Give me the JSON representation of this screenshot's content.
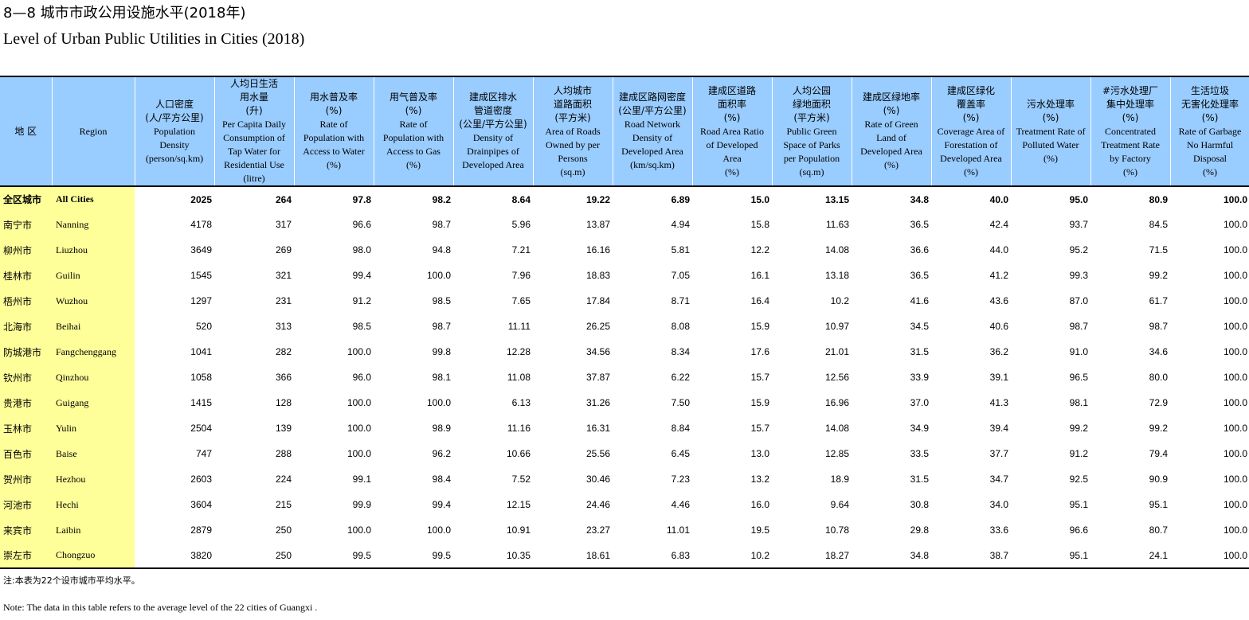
{
  "title": {
    "cn": "8—8  城市市政公用设施水平(2018年)",
    "en": "Level of Urban Public Utilities in Cities (2018)"
  },
  "table": {
    "region_cn_header": "地 区",
    "region_en_header": "Region",
    "columns": [
      {
        "cn": [
          "人口密度",
          "(人/平方公里)"
        ],
        "en": [
          "Population",
          "Density",
          "(person/sq.km)"
        ]
      },
      {
        "cn": [
          "人均日生活",
          "用水量",
          "(升)"
        ],
        "en": [
          "Per Capita Daily",
          "Consumption of",
          "Tap Water for",
          "Residential Use",
          "(litre)"
        ]
      },
      {
        "cn": [
          "用水普及率",
          "(%)"
        ],
        "en": [
          "Rate of",
          "Population with",
          "Access to Water",
          "(%)"
        ]
      },
      {
        "cn": [
          "用气普及率",
          "(%)"
        ],
        "en": [
          "Rate of",
          "Population with",
          "Access to Gas",
          "(%)"
        ]
      },
      {
        "cn": [
          "建成区排水",
          "管道密度",
          "(公里/平方公里)"
        ],
        "en": [
          "Density of",
          "Drainpipes of",
          "Developed Area"
        ]
      },
      {
        "cn": [
          "人均城市",
          "道路面积",
          "(平方米)"
        ],
        "en": [
          "Area of Roads",
          "Owned by per",
          "Persons",
          "(sq.m)"
        ]
      },
      {
        "cn": [
          "建成区路网密度",
          "(公里/平方公里)"
        ],
        "en": [
          "Road Network",
          "Density of",
          "Developed Area",
          "(km/sq.km)"
        ]
      },
      {
        "cn": [
          "建成区道路",
          "面积率",
          "(%)"
        ],
        "en": [
          "Road Area Ratio",
          "of Developed",
          "Area",
          "(%)"
        ]
      },
      {
        "cn": [
          "人均公园",
          "绿地面积",
          "(平方米)"
        ],
        "en": [
          "Public Green",
          "Space of Parks",
          "per Population",
          "(sq.m)"
        ]
      },
      {
        "cn": [
          "建成区绿地率",
          "(%)"
        ],
        "en": [
          "Rate of Green",
          "Land of",
          "Developed Area",
          "(%)"
        ]
      },
      {
        "cn": [
          "建成区绿化",
          "覆盖率",
          "(%)"
        ],
        "en": [
          "Coverage Area of",
          "Forestation of",
          "Developed Area",
          "(%)"
        ]
      },
      {
        "cn": [
          "污水处理率",
          "(%)"
        ],
        "en": [
          "Treatment Rate of",
          "Polluted Water",
          "(%)"
        ]
      },
      {
        "cn": [
          "#污水处理厂",
          "集中处理率",
          "(%)"
        ],
        "en": [
          "Concentrated",
          "Treatment Rate",
          "by Factory",
          "(%)"
        ]
      },
      {
        "cn": [
          "生活垃圾",
          "无害化处理率",
          "(%)"
        ],
        "en": [
          "Rate of Garbage",
          "No Harmful",
          "Disposal",
          "(%)"
        ]
      }
    ],
    "rows": [
      {
        "cn": "全区城市",
        "en": "All Cities",
        "total": true,
        "values": [
          "2025",
          "264",
          "97.8",
          "98.2",
          "8.64",
          "19.22",
          "6.89",
          "15.0",
          "13.15",
          "34.8",
          "40.0",
          "95.0",
          "80.9",
          "100.0"
        ]
      },
      {
        "cn": "南宁市",
        "en": "Nanning",
        "values": [
          "4178",
          "317",
          "96.6",
          "98.7",
          "5.96",
          "13.87",
          "4.94",
          "15.8",
          "11.63",
          "36.5",
          "42.4",
          "93.7",
          "84.5",
          "100.0"
        ]
      },
      {
        "cn": "柳州市",
        "en": "Liuzhou",
        "values": [
          "3649",
          "269",
          "98.0",
          "94.8",
          "7.21",
          "16.16",
          "5.81",
          "12.2",
          "14.08",
          "36.6",
          "44.0",
          "95.2",
          "71.5",
          "100.0"
        ]
      },
      {
        "cn": "桂林市",
        "en": "Guilin",
        "values": [
          "1545",
          "321",
          "99.4",
          "100.0",
          "7.96",
          "18.83",
          "7.05",
          "16.1",
          "13.18",
          "36.5",
          "41.2",
          "99.3",
          "99.2",
          "100.0"
        ]
      },
      {
        "cn": "梧州市",
        "en": "Wuzhou",
        "values": [
          "1297",
          "231",
          "91.2",
          "98.5",
          "7.65",
          "17.84",
          "8.71",
          "16.4",
          "10.2",
          "41.6",
          "43.6",
          "87.0",
          "61.7",
          "100.0"
        ]
      },
      {
        "cn": "北海市",
        "en": "Beihai",
        "values": [
          "520",
          "313",
          "98.5",
          "98.7",
          "11.11",
          "26.25",
          "8.08",
          "15.9",
          "10.97",
          "34.5",
          "40.6",
          "98.7",
          "98.7",
          "100.0"
        ]
      },
      {
        "cn": "防城港市",
        "en": "Fangchenggang",
        "values": [
          "1041",
          "282",
          "100.0",
          "99.8",
          "12.28",
          "34.56",
          "8.34",
          "17.6",
          "21.01",
          "31.5",
          "36.2",
          "91.0",
          "34.6",
          "100.0"
        ]
      },
      {
        "cn": "钦州市",
        "en": "Qinzhou",
        "values": [
          "1058",
          "366",
          "96.0",
          "98.1",
          "11.08",
          "37.87",
          "6.22",
          "15.7",
          "12.56",
          "33.9",
          "39.1",
          "96.5",
          "80.0",
          "100.0"
        ]
      },
      {
        "cn": "贵港市",
        "en": "Guigang",
        "values": [
          "1415",
          "128",
          "100.0",
          "100.0",
          "6.13",
          "31.26",
          "7.50",
          "15.9",
          "16.96",
          "37.0",
          "41.3",
          "98.1",
          "72.9",
          "100.0"
        ]
      },
      {
        "cn": "玉林市",
        "en": "Yulin",
        "values": [
          "2504",
          "139",
          "100.0",
          "98.9",
          "11.16",
          "16.31",
          "8.84",
          "15.7",
          "14.08",
          "34.9",
          "39.4",
          "99.2",
          "99.2",
          "100.0"
        ]
      },
      {
        "cn": "百色市",
        "en": "Baise",
        "values": [
          "747",
          "288",
          "100.0",
          "96.2",
          "10.66",
          "25.56",
          "6.45",
          "13.0",
          "12.85",
          "33.5",
          "37.7",
          "91.2",
          "79.4",
          "100.0"
        ]
      },
      {
        "cn": "贺州市",
        "en": "Hezhou",
        "values": [
          "2603",
          "224",
          "99.1",
          "98.4",
          "7.52",
          "30.46",
          "7.23",
          "13.2",
          "18.9",
          "31.5",
          "34.7",
          "92.5",
          "90.9",
          "100.0"
        ]
      },
      {
        "cn": "河池市",
        "en": "Hechi",
        "values": [
          "3604",
          "215",
          "99.9",
          "99.4",
          "12.15",
          "24.46",
          "4.46",
          "16.0",
          "9.64",
          "30.8",
          "34.0",
          "95.1",
          "95.1",
          "100.0"
        ]
      },
      {
        "cn": "来宾市",
        "en": "Laibin",
        "values": [
          "2879",
          "250",
          "100.0",
          "100.0",
          "10.91",
          "23.27",
          "11.01",
          "19.5",
          "10.78",
          "29.8",
          "33.6",
          "96.6",
          "80.7",
          "100.0"
        ]
      },
      {
        "cn": "崇左市",
        "en": "Chongzuo",
        "values": [
          "3820",
          "250",
          "99.5",
          "99.5",
          "10.35",
          "18.61",
          "6.83",
          "10.2",
          "18.27",
          "34.8",
          "38.7",
          "95.1",
          "24.1",
          "100.0"
        ]
      }
    ]
  },
  "notes": {
    "cn": "注:本表为22个设市城市平均水平。",
    "en": "Note: The data in this table refers to the average level of the 22 cities of Guangxi ."
  },
  "colors": {
    "header_bg": "#99ccff",
    "region_bg": "#ffff99"
  }
}
